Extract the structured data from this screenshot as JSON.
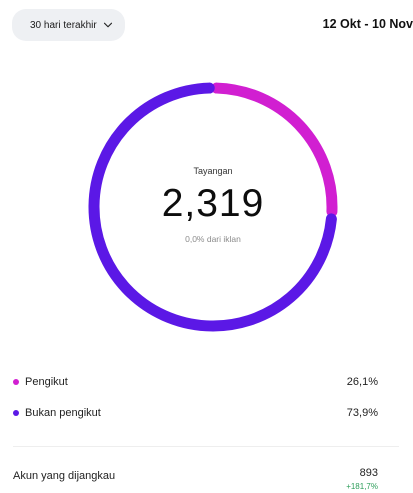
{
  "header": {
    "period_label": "30 hari terakhir",
    "date_range": "12 Okt - 10 Nov"
  },
  "summary": {
    "label": "Tayangan",
    "value": "2,319",
    "sub_label": "0,0% dari iklan"
  },
  "donut": {
    "followers_fraction": 0.261,
    "non_followers_fraction": 0.739
  },
  "legend": [
    {
      "label": "Pengikut",
      "value": "26,1%",
      "color": "#d11fd1"
    },
    {
      "label": "Bukan pengikut",
      "value": "73,9%",
      "color": "#5b18e6"
    }
  ],
  "reach": {
    "label": "Akun yang dijangkau",
    "value": "893",
    "change": "+181,7%",
    "change_color": "#2e9e5b"
  }
}
